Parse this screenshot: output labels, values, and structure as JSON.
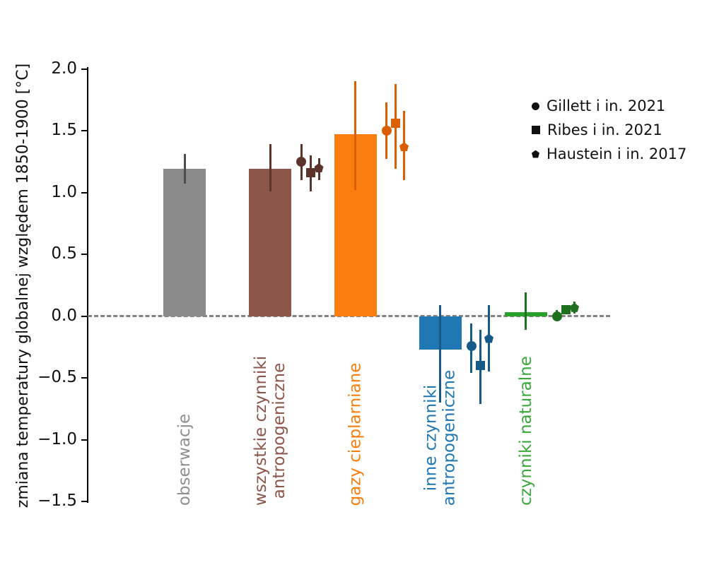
{
  "figure": {
    "background": "#ffffff",
    "axis_color": "#000000",
    "zero_line_color": "#808080",
    "legend_marker_color": "#111111"
  },
  "legend": {
    "entries": [
      {
        "label": "Gillett i in. 2021",
        "marker": "circle"
      },
      {
        "label": "Ribes i in. 2021",
        "marker": "square"
      },
      {
        "label": "Haustein i in. 2017",
        "marker": "pentagon"
      }
    ]
  },
  "chart_data": {
    "type": "bar",
    "title": "",
    "xlabel": "",
    "ylabel": "zmiana temperatury globalnej względem 1850-1900 [°C]",
    "ylim": [
      -1.75,
      2.1
    ],
    "yticks": [
      2.0,
      1.5,
      1.0,
      0.5,
      0.0,
      -0.5,
      -1.0,
      -1.5
    ],
    "grid": false,
    "zero_line_style": "dashed",
    "legend_position": "upper right",
    "units": "°C",
    "categories": [
      {
        "label": "obserwacje",
        "label_lines": [
          "obserwacje"
        ],
        "bar_color": "#8a8a8a",
        "label_color": "#8f8f8f",
        "error_color": "#4d4d4d",
        "value": 1.19,
        "ci": [
          1.07,
          1.31
        ],
        "studies": []
      },
      {
        "label": "wszystkie czynniki antropogeniczne",
        "label_lines": [
          "wszystkie czynniki",
          "antropogeniczne"
        ],
        "bar_color": "#8c564b",
        "label_color": "#8c564b",
        "error_color": "#5c342c",
        "marker_color": "#5c342c",
        "value": 1.19,
        "ci": [
          1.01,
          1.39
        ],
        "studies": [
          {
            "study": "Gillett i in. 2021",
            "marker": "circle",
            "value": 1.25,
            "ci": [
              1.1,
              1.39
            ]
          },
          {
            "study": "Ribes i in. 2021",
            "marker": "square",
            "value": 1.16,
            "ci": [
              1.01,
              1.3
            ]
          },
          {
            "study": "Haustein i in. 2017",
            "marker": "pentagon",
            "value": 1.2,
            "ci": [
              1.1,
              1.28
            ]
          }
        ]
      },
      {
        "label": "gazy cieplarniane",
        "label_lines": [
          "gazy cieplarniane"
        ],
        "bar_color": "#f97e0e",
        "label_color": "#f97e0e",
        "error_color": "#d95f02",
        "marker_color": "#d95f02",
        "value": 1.47,
        "ci": [
          1.02,
          1.9
        ],
        "studies": [
          {
            "study": "Gillett i in. 2021",
            "marker": "circle",
            "value": 1.5,
            "ci": [
              1.27,
              1.73
            ]
          },
          {
            "study": "Ribes i in. 2021",
            "marker": "square",
            "value": 1.56,
            "ci": [
              1.19,
              1.88
            ]
          },
          {
            "study": "Haustein i in. 2017",
            "marker": "pentagon",
            "value": 1.37,
            "ci": [
              1.1,
              1.66
            ]
          }
        ]
      },
      {
        "label": "inne czynniki antropogeniczne",
        "label_lines": [
          "inne czynniki",
          "antropogeniczne"
        ],
        "bar_color": "#1f77b4",
        "label_color": "#1f77b4",
        "error_color": "#165a87",
        "marker_color": "#165a87",
        "value": -0.27,
        "ci": [
          -0.7,
          0.09
        ],
        "studies": [
          {
            "study": "Gillett i in. 2021",
            "marker": "circle",
            "value": -0.24,
            "ci": [
              -0.46,
              -0.06
            ]
          },
          {
            "study": "Ribes i in. 2021",
            "marker": "square",
            "value": -0.4,
            "ci": [
              -0.71,
              -0.11
            ]
          },
          {
            "study": "Haustein i in. 2017",
            "marker": "pentagon",
            "value": -0.18,
            "ci": [
              -0.45,
              0.09
            ]
          }
        ]
      },
      {
        "label": "czynniki naturalne",
        "label_lines": [
          "czynniki naturalne"
        ],
        "bar_color": "#2ca02c",
        "label_color": "#3aa63a",
        "error_color": "#1e701e",
        "marker_color": "#1e701e",
        "value": 0.03,
        "ci": [
          -0.11,
          0.19
        ],
        "studies": [
          {
            "study": "Gillett i in. 2021",
            "marker": "circle",
            "value": 0.0,
            "ci": [
              -0.04,
              0.05
            ]
          },
          {
            "study": "Ribes i in. 2021",
            "marker": "square",
            "value": 0.05,
            "ci": [
              0.03,
              0.08
            ]
          },
          {
            "study": "Haustein i in. 2017",
            "marker": "pentagon",
            "value": 0.07,
            "ci": [
              0.02,
              0.12
            ]
          }
        ]
      }
    ]
  }
}
